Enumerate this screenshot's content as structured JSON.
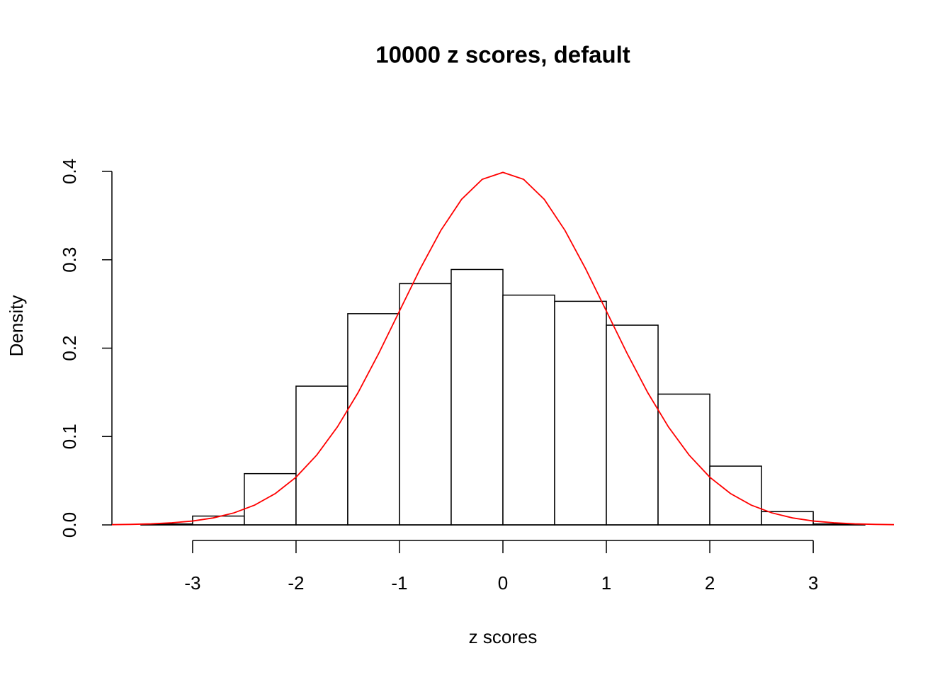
{
  "chart_data": {
    "type": "histogram",
    "title": "10000 z scores, default",
    "xlabel": "z scores",
    "ylabel": "Density",
    "bins": [
      -3.5,
      -3,
      -2.5,
      -2,
      -1.5,
      -1,
      -0.5,
      0,
      0.5,
      1,
      1.5,
      2,
      2.5,
      3,
      3.5
    ],
    "values": [
      0.001,
      0.01,
      0.058,
      0.157,
      0.239,
      0.273,
      0.289,
      0.26,
      0.253,
      0.226,
      0.148,
      0.0665,
      0.015,
      0.001
    ],
    "color": "#ffffff",
    "edge_color": "#000000",
    "curve": {
      "color": "#ff0000",
      "x": [
        -3.78,
        -3.6,
        -3.4,
        -3.2,
        -3.0,
        -2.8,
        -2.6,
        -2.4,
        -2.2,
        -2.0,
        -1.8,
        -1.6,
        -1.4,
        -1.2,
        -1.0,
        -0.8,
        -0.6,
        -0.4,
        -0.2,
        0,
        0.2,
        0.4,
        0.6,
        0.8,
        1.0,
        1.2,
        1.4,
        1.6,
        1.8,
        2.0,
        2.2,
        2.4,
        2.6,
        2.8,
        3.0,
        3.2,
        3.4,
        3.6,
        3.78
      ],
      "values": [
        0.0003,
        0.0006,
        0.0012,
        0.0024,
        0.0044,
        0.0079,
        0.0136,
        0.0224,
        0.0355,
        0.054,
        0.079,
        0.1109,
        0.1497,
        0.1942,
        0.242,
        0.2897,
        0.3332,
        0.3683,
        0.391,
        0.3989,
        0.391,
        0.3683,
        0.3332,
        0.2897,
        0.242,
        0.1942,
        0.1497,
        0.1109,
        0.079,
        0.054,
        0.0355,
        0.0224,
        0.0136,
        0.0079,
        0.0044,
        0.0024,
        0.0012,
        0.0006,
        0.0003
      ]
    },
    "xlim": [
      -3.78,
      3.78
    ],
    "ylim": [
      -0.016,
      0.416
    ],
    "xticks": [
      -3,
      -2,
      -1,
      0,
      1,
      2,
      3
    ],
    "yticks": [
      {
        "value": 0,
        "label": "0.0"
      },
      0.1,
      0.2,
      0.3,
      0.4
    ]
  }
}
